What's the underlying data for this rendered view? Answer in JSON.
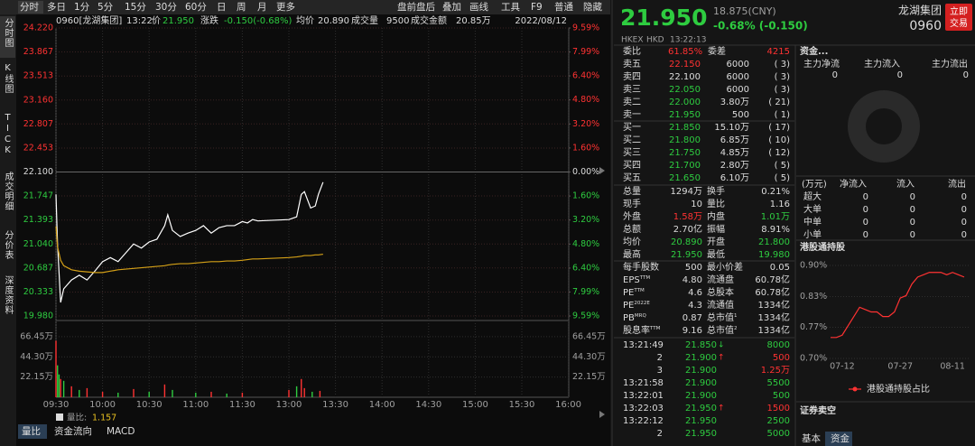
{
  "toolbar": {
    "tabs": [
      "分时",
      "多日",
      "1分",
      "5分",
      "15分",
      "30分",
      "60分",
      "日",
      "周",
      "月",
      "更多"
    ],
    "tools": [
      "盘前盘后",
      "叠加",
      "画线",
      "工具",
      "F9",
      "普通",
      "隐藏"
    ]
  },
  "side_tabs": [
    "分时图",
    "K线图",
    "TICK",
    "成交明细",
    "分价表",
    "深度资料"
  ],
  "quote_bar": {
    "code": "0960[龙湖集团]",
    "time": "13:22",
    "price_label": "价",
    "price": "21.950",
    "change_label": "涨跌",
    "change": "-0.150(-0.68%)",
    "avg_label": "均价",
    "avg": "20.890",
    "volume_label": "成交量",
    "volume": "9500",
    "amount_label": "成交金额",
    "amount": "20.85万",
    "date": "2022/08/12"
  },
  "intraday_chart": {
    "type": "line",
    "xticks": [
      "09:30",
      "10:00",
      "10:30",
      "11:00",
      "11:30",
      "13:00",
      "13:30",
      "14:00",
      "14:30",
      "15:00",
      "15:30",
      "16:00"
    ],
    "x": [
      "09:30",
      "09:31",
      "09:33",
      "09:35",
      "09:40",
      "09:45",
      "09:50",
      "09:55",
      "10:00",
      "10:05",
      "10:10",
      "10:15",
      "10:20",
      "10:25",
      "10:30",
      "10:35",
      "10:40",
      "10:42",
      "10:45",
      "10:50",
      "10:55",
      "11:00",
      "11:05",
      "11:10",
      "11:15",
      "11:20",
      "11:25",
      "11:30",
      "11:40",
      "11:50",
      "12:00",
      "13:00",
      "13:05",
      "13:08",
      "13:10",
      "13:14",
      "13:17",
      "13:19",
      "13:22"
    ],
    "series": [
      {
        "color": "#ffffff",
        "values": [
          21.77,
          21.04,
          20.18,
          20.38,
          20.51,
          20.58,
          20.51,
          20.64,
          20.78,
          20.84,
          20.78,
          20.91,
          21.04,
          20.98,
          21.07,
          21.11,
          21.31,
          21.47,
          21.24,
          21.15,
          21.2,
          21.24,
          21.31,
          21.2,
          21.28,
          21.31,
          21.31,
          21.37,
          21.35,
          21.4,
          21.38,
          21.4,
          21.44,
          21.77,
          21.81,
          21.57,
          21.6,
          21.77,
          21.95
        ]
      },
      {
        "color": "#d4a017",
        "values": [
          21.3,
          21.0,
          20.8,
          20.72,
          20.66,
          20.64,
          20.63,
          20.62,
          20.62,
          20.64,
          20.66,
          20.67,
          20.68,
          20.69,
          20.7,
          20.71,
          20.72,
          20.73,
          20.74,
          20.75,
          20.75,
          20.76,
          20.77,
          20.78,
          20.78,
          20.79,
          20.79,
          20.8,
          20.81,
          20.82,
          20.82,
          20.84,
          20.85,
          20.86,
          20.87,
          20.87,
          20.88,
          20.88,
          20.89
        ]
      }
    ],
    "ylim": [
      19.98,
      24.22
    ],
    "yticks": [
      {
        "value": 24.22,
        "label": "24.220"
      },
      {
        "value": 23.867,
        "label": "23.867"
      },
      {
        "value": 23.513,
        "label": "23.513"
      },
      {
        "value": 23.16,
        "label": "23.160"
      },
      {
        "value": 22.807,
        "label": "22.807"
      },
      {
        "value": 22.453,
        "label": "22.453"
      },
      {
        "value": 22.1,
        "label": "22.100"
      },
      {
        "value": 21.747,
        "label": "21.747"
      },
      {
        "value": 21.393,
        "label": "21.393"
      },
      {
        "value": 21.04,
        "label": "21.040"
      },
      {
        "value": 20.687,
        "label": "20.687"
      },
      {
        "value": 20.333,
        "label": "20.333"
      },
      {
        "value": 19.98,
        "label": "19.980"
      }
    ],
    "y2lim": [
      -9.59,
      9.59
    ],
    "y2ticks": [
      {
        "value": 9.59,
        "label": "9.59%"
      },
      {
        "value": 7.99,
        "label": "7.99%"
      },
      {
        "value": 6.4,
        "label": "6.40%"
      },
      {
        "value": 4.8,
        "label": "4.80%"
      },
      {
        "value": 3.2,
        "label": "3.20%"
      },
      {
        "value": 1.6,
        "label": "1.60%"
      },
      {
        "value": 0,
        "label": "0.00%"
      },
      {
        "value": -1.6,
        "label": "1.60%"
      },
      {
        "value": -3.2,
        "label": "3.20%"
      },
      {
        "value": -4.8,
        "label": "4.80%"
      },
      {
        "value": -6.4,
        "label": "6.40%"
      },
      {
        "value": -7.99,
        "label": "7.99%"
      },
      {
        "value": -9.59,
        "label": "9.59%"
      }
    ],
    "grid": true
  },
  "volume_chart": {
    "type": "bar",
    "x": [
      "09:30",
      "09:31",
      "09:32",
      "09:33",
      "09:35",
      "09:40",
      "09:45",
      "09:50",
      "10:00",
      "10:10",
      "10:20",
      "10:30",
      "10:40",
      "10:45",
      "11:00",
      "11:10",
      "11:20",
      "11:30",
      "13:00",
      "13:05",
      "13:08",
      "13:10",
      "13:15",
      "13:20"
    ],
    "values": [
      62,
      35,
      25,
      20,
      18,
      12,
      8,
      10,
      6,
      5,
      9,
      6,
      14,
      8,
      5,
      6,
      4,
      5,
      8,
      12,
      20,
      10,
      6,
      7
    ],
    "colors": [
      "#ff3232",
      "#2ecc40",
      "#2ecc40",
      "#ff3232",
      "#2ecc40",
      "#ff3232",
      "#2ecc40",
      "#ff3232",
      "#ff3232",
      "#2ecc40",
      "#ff3232",
      "#2ecc40",
      "#ff3232",
      "#2ecc40",
      "#2ecc40",
      "#ff3232",
      "#2ecc40",
      "#ff3232",
      "#ff3232",
      "#2ecc40",
      "#ff3232",
      "#ff3232",
      "#2ecc40",
      "#ff3232"
    ],
    "ylim": [
      0,
      79.2
    ],
    "yticks": [
      {
        "value": 66.45,
        "label": "66.45万"
      },
      {
        "value": 44.3,
        "label": "44.30万"
      },
      {
        "value": 22.15,
        "label": "22.15万"
      }
    ]
  },
  "ratio": {
    "label": "量比:",
    "value": "1.157"
  },
  "bottom_tabs": [
    "量比",
    "资金流向",
    "MACD"
  ],
  "header": {
    "price": "21.950",
    "cny": "18.875(CNY)",
    "change": "-0.68% (-0.150)",
    "exchange": "HKEX",
    "currency": "HKD",
    "time": "13:22:13",
    "name": "龙湖集团",
    "code": "0960",
    "trade_button": [
      "立即",
      "交易"
    ]
  },
  "order_book": {
    "ratio_label": "委比",
    "ratio": "61.85%",
    "diff_label": "委差",
    "diff": "4215",
    "asks": [
      [
        "卖五",
        "22.150",
        "6000",
        "(  3)"
      ],
      [
        "卖四",
        "22.100",
        "6000",
        "(  3)"
      ],
      [
        "卖三",
        "22.050",
        "6000",
        "(  3)"
      ],
      [
        "卖二",
        "22.000",
        "3.80万",
        "( 21)"
      ],
      [
        "卖一",
        "21.950",
        "500",
        "(  1)"
      ]
    ],
    "bids": [
      [
        "买一",
        "21.850",
        "15.10万",
        "( 17)"
      ],
      [
        "买二",
        "21.800",
        "6.85万",
        "( 10)"
      ],
      [
        "买三",
        "21.750",
        "4.85万",
        "( 12)"
      ],
      [
        "买四",
        "21.700",
        "2.80万",
        "(  5)"
      ],
      [
        "买五",
        "21.650",
        "6.10万",
        "(  5)"
      ]
    ]
  },
  "stats": [
    {
      "cells": [
        "总量",
        "1294万",
        "换手",
        "0.21%"
      ],
      "colors": [
        "#dddddd",
        "#dddddd"
      ]
    },
    {
      "cells": [
        "现手",
        "10",
        "量比",
        "1.16"
      ],
      "colors": [
        "#dddddd",
        "#dddddd"
      ]
    },
    {
      "cells": [
        "外盘",
        "1.58万",
        "内盘",
        "1.01万"
      ],
      "colors": [
        "#ff3232",
        "#2ecc40"
      ]
    },
    {
      "cells": [
        "总额",
        "2.70亿",
        "振幅",
        "8.91%"
      ],
      "colors": [
        "#dddddd",
        "#dddddd"
      ]
    },
    {
      "cells": [
        "均价",
        "20.890",
        "开盘",
        "21.800"
      ],
      "colors": [
        "#2ecc40",
        "#2ecc40"
      ]
    },
    {
      "cells": [
        "最高",
        "21.950",
        "最低",
        "19.980"
      ],
      "colors": [
        "#2ecc40",
        "#2ecc40"
      ]
    }
  ],
  "fundamentals": [
    {
      "cells": [
        "每手股数",
        "500",
        "最小价差",
        "0.05"
      ]
    },
    {
      "cells": [
        {
          "text": "EPS",
          "sup": "TTM"
        },
        "4.80",
        "流通盘",
        "60.78亿"
      ]
    },
    {
      "cells": [
        {
          "text": "PE",
          "sup": "TTM"
        },
        "4.6",
        "总股本",
        "60.78亿"
      ]
    },
    {
      "cells": [
        {
          "text": "PE",
          "sup": "2022E"
        },
        "4.3",
        "流通值",
        "1334亿"
      ]
    },
    {
      "cells": [
        {
          "text": "PB",
          "sup": "MRQ"
        },
        "0.87",
        {
          "text": "总市值",
          "sup": "1"
        },
        "1334亿"
      ]
    },
    {
      "cells": [
        {
          "text": "股息率",
          "sup": "TTM"
        },
        "9.16",
        {
          "text": "总市值",
          "sup": "2"
        },
        "1334亿"
      ]
    }
  ],
  "trades": [
    {
      "time": "13:21:49",
      "price": "21.850",
      "arrow": "↓",
      "arrow_color": "#2ecc40",
      "volume": "8000",
      "color": "#2ecc40"
    },
    {
      "time": "2",
      "price": "21.900",
      "arrow": "↑",
      "arrow_color": "#ff3232",
      "volume": "500",
      "color": "#ff3232"
    },
    {
      "time": "3",
      "price": "21.900",
      "volume": "1.25万",
      "color": "#ff3232"
    },
    {
      "time": "13:21:58",
      "price": "21.900",
      "volume": "5500",
      "color": "#2ecc40"
    },
    {
      "time": "13:22:01",
      "price": "21.900",
      "volume": "500",
      "color": "#2ecc40"
    },
    {
      "time": "13:22:03",
      "price": "21.950",
      "arrow": "↑",
      "arrow_color": "#ff3232",
      "volume": "1500",
      "color": "#ff3232"
    },
    {
      "time": "13:22:12",
      "price": "21.950",
      "volume": "2500",
      "color": "#2ecc40"
    },
    {
      "time": "2",
      "price": "21.950",
      "volume": "5000",
      "color": "#2ecc40"
    }
  ],
  "funds": {
    "title": "资金...",
    "heads": [
      "主力净流",
      "主力流入",
      "主力流出"
    ],
    "values": [
      "0",
      "0",
      "0"
    ]
  },
  "flow_table": {
    "heads": [
      "(万元)",
      "净流入",
      "流入",
      "流出"
    ],
    "rows": [
      [
        "超大",
        "0",
        "0",
        "0"
      ],
      [
        "大单",
        "0",
        "0",
        "0"
      ],
      [
        "中单",
        "0",
        "0",
        "0"
      ],
      [
        "小单",
        "0",
        "0",
        "0"
      ]
    ]
  },
  "holdings_chart": {
    "type": "line",
    "title": "港股通持股",
    "categories": [
      null,
      null,
      "07-12",
      null,
      null,
      null,
      null,
      null,
      null,
      null,
      null,
      null,
      "07-27",
      null,
      null,
      null,
      null,
      null,
      null,
      null,
      null,
      "08-11",
      null,
      null
    ],
    "series": [
      {
        "name": "港股通持股占比",
        "color": "#ff3232",
        "values": [
          0.745,
          0.745,
          0.75,
          0.77,
          0.79,
          0.81,
          0.805,
          0.8,
          0.8,
          0.79,
          0.79,
          0.8,
          0.83,
          0.835,
          0.86,
          0.875,
          0.88,
          0.885,
          0.885,
          0.885,
          0.88,
          0.885,
          0.88,
          0.875
        ]
      }
    ],
    "ylim": [
      0.7,
      0.9
    ],
    "yticks": [
      {
        "value": 0.9,
        "label": "0.90%"
      },
      {
        "value": 0.833,
        "label": "0.83%"
      },
      {
        "value": 0.767,
        "label": "0.77%"
      },
      {
        "value": 0.7,
        "label": "0.70%"
      }
    ],
    "legend": "bottom"
  },
  "short_title": "证券卖空",
  "panel_tabs": [
    "基本",
    "资金"
  ]
}
